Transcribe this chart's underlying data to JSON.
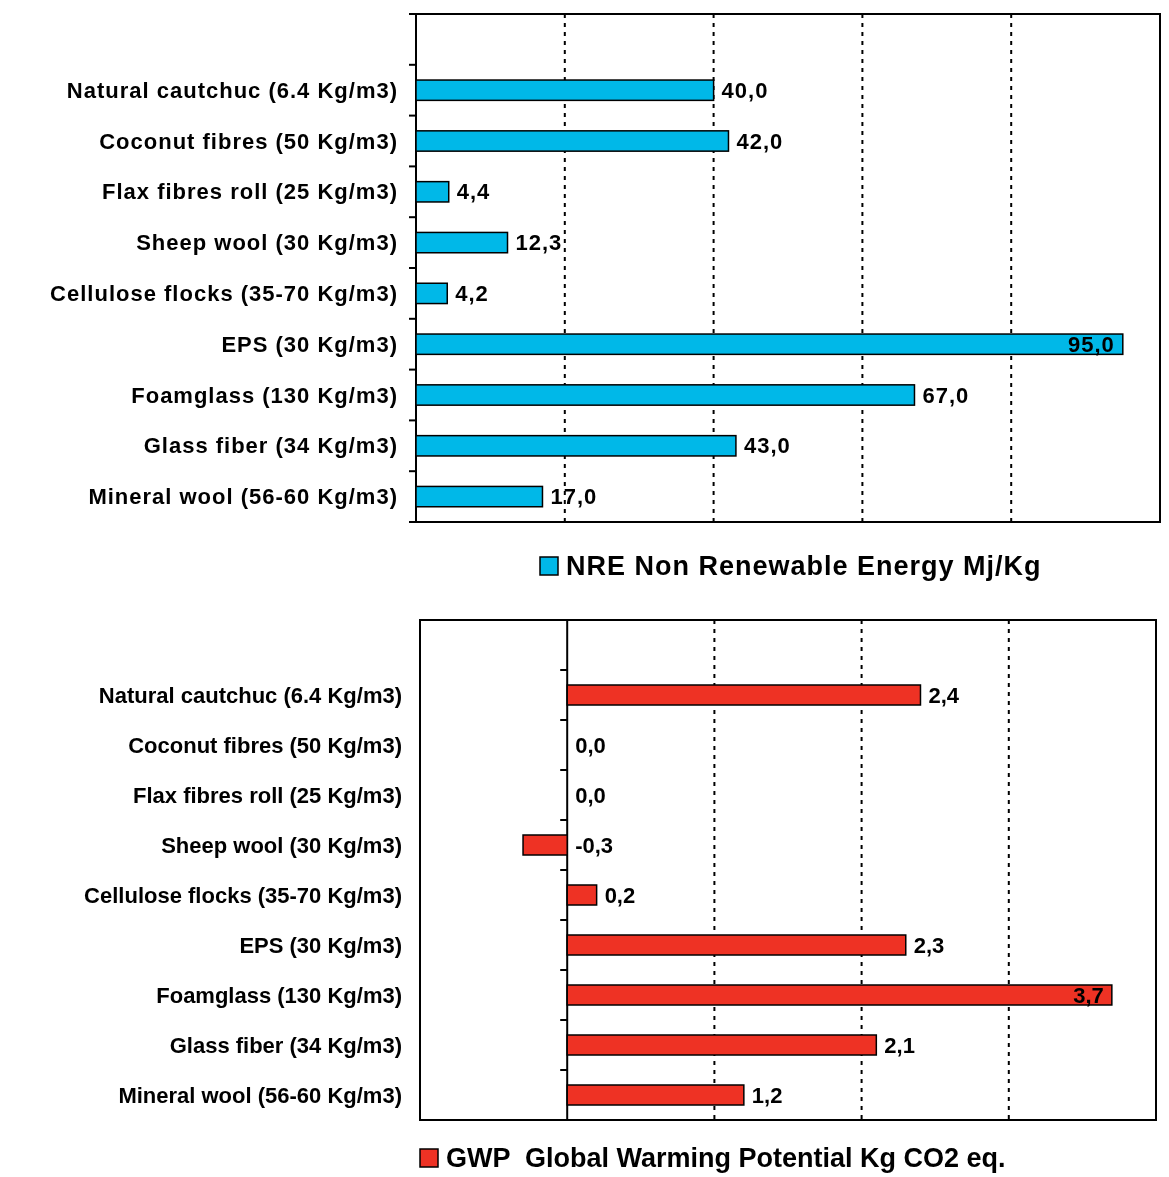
{
  "chart_data": [
    {
      "type": "bar",
      "orientation": "horizontal",
      "categories": [
        "Natural cautchuc (6.4 Kg/m3)",
        "Coconut fibres (50 Kg/m3)",
        "Flax fibres roll (25 Kg/m3)",
        "Sheep wool (30 Kg/m3)",
        "Cellulose flocks (35-70 Kg/m3)",
        "EPS (30 Kg/m3)",
        "Foamglass (130 Kg/m3)",
        "Glass fiber (34 Kg/m3)",
        "Mineral wool (56-60 Kg/m3)"
      ],
      "series": [
        {
          "name": "NRE Non Renewable Energy Mj/Kg",
          "color": "#00b8e8",
          "values": [
            40.0,
            42.0,
            4.4,
            12.3,
            4.2,
            95.0,
            67.0,
            43.0,
            17.0
          ],
          "value_labels": [
            "40,0",
            "42,0",
            "4,4",
            "12,3",
            "4,2",
            "95,0",
            "67,0",
            "43,0",
            "17,0"
          ]
        }
      ],
      "xlim": [
        0,
        100
      ],
      "xticks": [
        {
          "value": 20,
          "label": null
        },
        {
          "value": 40,
          "label": null
        },
        {
          "value": 60,
          "label": null
        },
        {
          "value": 80,
          "label": null
        }
      ],
      "grid": "x",
      "legend": "bottom",
      "tick_labels": "y"
    },
    {
      "type": "bar",
      "orientation": "horizontal",
      "categories": [
        "Natural cautchuc (6.4 Kg/m3)",
        "Coconut fibres (50 Kg/m3)",
        "Flax fibres roll (25 Kg/m3)",
        "Sheep wool (30 Kg/m3)",
        "Cellulose flocks (35-70 Kg/m3)",
        "EPS (30 Kg/m3)",
        "Foamglass (130 Kg/m3)",
        "Glass fiber (34 Kg/m3)",
        "Mineral wool (56-60 Kg/m3)"
      ],
      "series": [
        {
          "name": "GWP  Global Warming Potential Kg CO2 eq.",
          "color": "#ee3224",
          "values": [
            2.4,
            0.0,
            0.0,
            -0.3,
            0.2,
            2.3,
            3.7,
            2.1,
            1.2
          ],
          "value_labels": [
            "2,4",
            "0,0",
            "0,0",
            "-0,3",
            "0,2",
            "2,3",
            "3,7",
            "2,1",
            "1,2"
          ]
        }
      ],
      "xlim": [
        -1,
        4
      ],
      "xticks": [
        {
          "value": 1,
          "label": null
        },
        {
          "value": 2,
          "label": null
        },
        {
          "value": 3,
          "label": null
        }
      ],
      "grid": "x",
      "legend": "bottom",
      "tick_labels": "y"
    }
  ]
}
